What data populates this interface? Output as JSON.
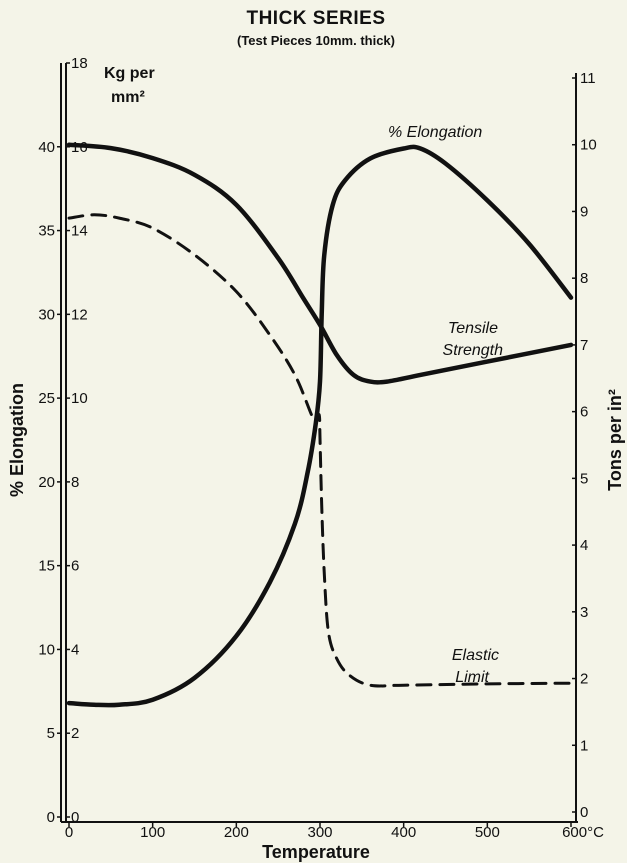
{
  "chart_data": {
    "type": "line",
    "title": "THICK SERIES",
    "subtitle": "(Test Pieces 10mm. thick)",
    "xlabel": "Temperature",
    "ylabel_left": "% Elongation",
    "ylabel_right": "Tons per in²",
    "inner_axis_unit": [
      "Kg per",
      "mm²"
    ],
    "x_axis": {
      "range": [
        0,
        600
      ],
      "ticks": [
        "0",
        "100",
        "200",
        "300",
        "400",
        "500",
        "600°C"
      ],
      "tick_values": [
        0,
        100,
        200,
        300,
        400,
        500,
        600
      ]
    },
    "y_left_elongation": {
      "range": [
        0,
        45
      ],
      "ticks": [
        "0",
        "5",
        "10",
        "15",
        "20",
        "25",
        "30",
        "35",
        "40"
      ],
      "tick_values": [
        0,
        5,
        10,
        15,
        20,
        25,
        30,
        35,
        40
      ]
    },
    "y_left_kg": {
      "range": [
        0,
        18
      ],
      "ticks": [
        "0",
        "2",
        "4",
        "6",
        "8",
        "10",
        "12",
        "14",
        "16",
        "18"
      ],
      "tick_values": [
        0,
        2,
        4,
        6,
        8,
        10,
        12,
        14,
        16,
        18
      ]
    },
    "y_right_tons": {
      "range": [
        0,
        11
      ],
      "ticks": [
        "0",
        "1",
        "2",
        "3",
        "4",
        "5",
        "6",
        "7",
        "8",
        "9",
        "10",
        "11"
      ],
      "tick_values": [
        0,
        1,
        2,
        3,
        4,
        5,
        6,
        7,
        8,
        9,
        10,
        11
      ]
    },
    "grid": false,
    "series": [
      {
        "name": "% Elongation",
        "style": "solid",
        "axis": "elongation",
        "label_lines": [
          "% Elongation"
        ],
        "x": [
          0,
          30,
          60,
          100,
          150,
          200,
          240,
          270,
          285,
          295,
          300,
          302,
          305,
          315,
          330,
          360,
          400,
          420,
          450,
          500,
          550,
          600
        ],
        "y": [
          6.8,
          6.7,
          6.7,
          7.0,
          8.3,
          10.8,
          14.0,
          17.5,
          20.5,
          23.5,
          26.0,
          30.0,
          33.5,
          36.5,
          38.0,
          39.3,
          39.9,
          39.9,
          39.0,
          36.8,
          34.2,
          31.0
        ]
      },
      {
        "name": "Tensile Strength",
        "style": "solid",
        "axis": "tons",
        "label_lines": [
          "Tensile",
          "Strength"
        ],
        "x": [
          0,
          50,
          100,
          150,
          200,
          250,
          280,
          300,
          320,
          340,
          360,
          380,
          420,
          500,
          600
        ],
        "y": [
          10.0,
          9.95,
          9.8,
          9.55,
          9.1,
          8.3,
          7.7,
          7.3,
          6.85,
          6.55,
          6.45,
          6.45,
          6.55,
          6.75,
          7.0
        ]
      },
      {
        "name": "Elastic Limit",
        "style": "dashed",
        "axis": "tons",
        "label_lines": [
          "Elastic",
          "Limit"
        ],
        "x": [
          0,
          30,
          60,
          100,
          150,
          200,
          240,
          270,
          290,
          295,
          299,
          300,
          302,
          305,
          310,
          320,
          335,
          360,
          400,
          500,
          600
        ],
        "y": [
          8.9,
          8.95,
          8.9,
          8.75,
          8.35,
          7.8,
          7.15,
          6.55,
          5.95,
          5.85,
          5.95,
          5.6,
          4.6,
          3.6,
          2.7,
          2.3,
          2.05,
          1.9,
          1.9,
          1.92,
          1.93
        ]
      }
    ]
  }
}
